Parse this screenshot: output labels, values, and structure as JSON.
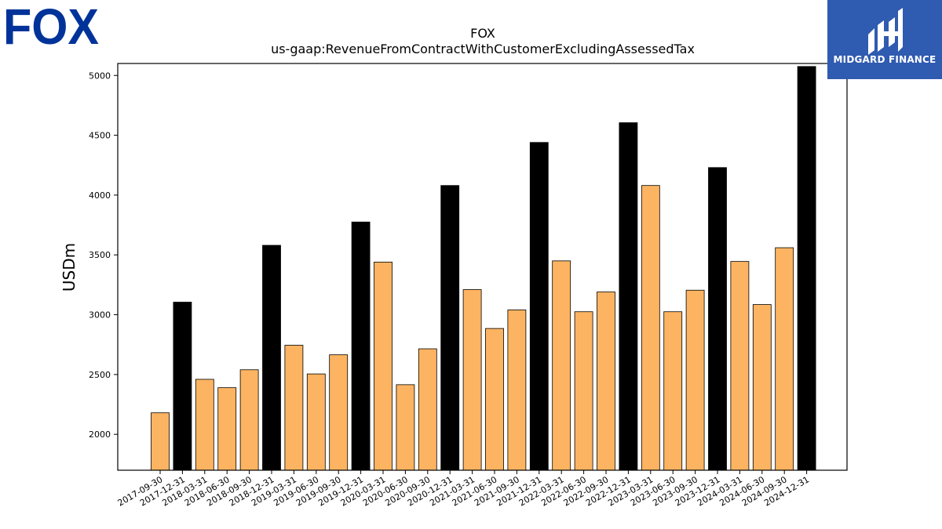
{
  "brand": {
    "left_logo_text": "FOX",
    "left_logo_color": "#003399",
    "right_logo_text": "MIDGARD FINANCE",
    "right_logo_bg": "#2f5bb0"
  },
  "chart_data": {
    "type": "bar",
    "title": "FOX",
    "subtitle": "us-gaap:RevenueFromContractWithCustomerExcludingAssessedTax",
    "xlabel": "",
    "ylabel": "USDm",
    "ylim": [
      1700,
      5100
    ],
    "yticks": [
      2000,
      2500,
      3000,
      3500,
      4000,
      4500,
      5000
    ],
    "grid": false,
    "colors": {
      "quarter": "#fdb462",
      "year_end": "#000000"
    },
    "categories": [
      "2017-09-30",
      "2017-12-31",
      "2018-03-31",
      "2018-06-30",
      "2018-09-30",
      "2018-12-31",
      "2019-03-31",
      "2019-06-30",
      "2019-09-30",
      "2019-12-31",
      "2020-03-31",
      "2020-06-30",
      "2020-09-30",
      "2020-12-31",
      "2021-03-31",
      "2021-06-30",
      "2021-09-30",
      "2021-12-31",
      "2022-03-31",
      "2022-06-30",
      "2022-09-30",
      "2022-12-31",
      "2023-03-31",
      "2023-06-30",
      "2023-09-30",
      "2023-12-31",
      "2024-03-31",
      "2024-06-30",
      "2024-09-30",
      "2024-12-31"
    ],
    "values": [
      2180,
      3105,
      2460,
      2390,
      2540,
      3580,
      2745,
      2505,
      2665,
      3775,
      3440,
      2415,
      2715,
      4080,
      3210,
      2885,
      3040,
      4440,
      3450,
      3025,
      3190,
      4605,
      4080,
      3025,
      3205,
      4230,
      3445,
      3085,
      3560,
      5075
    ],
    "highlight": [
      false,
      true,
      false,
      false,
      false,
      true,
      false,
      false,
      false,
      true,
      false,
      false,
      false,
      true,
      false,
      false,
      false,
      true,
      false,
      false,
      false,
      true,
      false,
      false,
      false,
      true,
      false,
      false,
      false,
      true
    ]
  }
}
